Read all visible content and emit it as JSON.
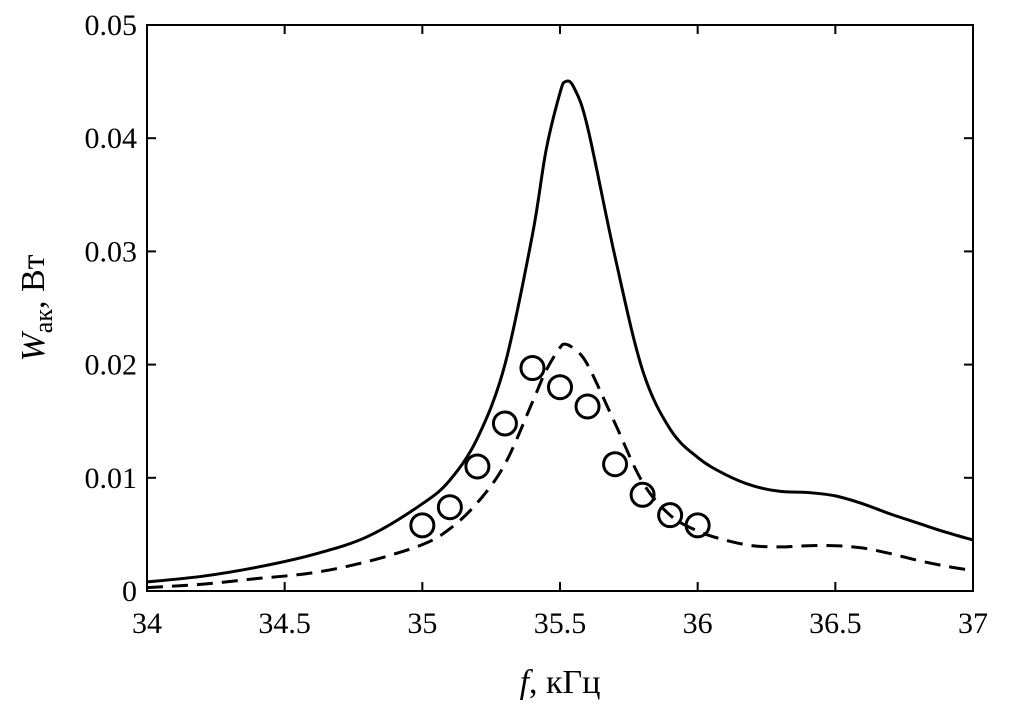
{
  "chart_data": {
    "type": "line",
    "xlabel": {
      "var": "f",
      "unit": ", кГц"
    },
    "ylabel": {
      "var": "W",
      "sub": "ак",
      "unit": ", Вт"
    },
    "xlim": [
      34,
      37
    ],
    "ylim": [
      0,
      0.05
    ],
    "x_ticks": [
      34,
      34.5,
      35,
      35.5,
      36,
      36.5,
      37
    ],
    "x_tick_labels": [
      "34",
      "34.5",
      "35",
      "35.5",
      "36",
      "36.5",
      "37"
    ],
    "y_ticks": [
      0,
      0.01,
      0.02,
      0.03,
      0.04,
      0.05
    ],
    "y_tick_labels": [
      "0",
      "0.01",
      "0.02",
      "0.03",
      "0.04",
      "0.05"
    ],
    "grid": false,
    "series": [
      {
        "style": "solid",
        "color": "#000000",
        "points": [
          [
            34.0,
            0.0008
          ],
          [
            34.2,
            0.0013
          ],
          [
            34.4,
            0.0021
          ],
          [
            34.6,
            0.0032
          ],
          [
            34.8,
            0.0048
          ],
          [
            35.0,
            0.0077
          ],
          [
            35.1,
            0.0098
          ],
          [
            35.2,
            0.0135
          ],
          [
            35.3,
            0.02
          ],
          [
            35.4,
            0.0315
          ],
          [
            35.45,
            0.039
          ],
          [
            35.5,
            0.044
          ],
          [
            35.52,
            0.045
          ],
          [
            35.55,
            0.0445
          ],
          [
            35.6,
            0.041
          ],
          [
            35.7,
            0.0295
          ],
          [
            35.8,
            0.0195
          ],
          [
            35.9,
            0.0143
          ],
          [
            36.0,
            0.0118
          ],
          [
            36.1,
            0.0103
          ],
          [
            36.2,
            0.0093
          ],
          [
            36.3,
            0.0088
          ],
          [
            36.4,
            0.0087
          ],
          [
            36.5,
            0.0084
          ],
          [
            36.6,
            0.0077
          ],
          [
            36.7,
            0.0068
          ],
          [
            36.8,
            0.006
          ],
          [
            36.9,
            0.0052
          ],
          [
            37.0,
            0.0045
          ]
        ]
      },
      {
        "style": "dashed",
        "color": "#000000",
        "points": [
          [
            34.0,
            0.0003
          ],
          [
            34.2,
            0.0006
          ],
          [
            34.4,
            0.0011
          ],
          [
            34.6,
            0.0016
          ],
          [
            34.8,
            0.0026
          ],
          [
            35.0,
            0.0041
          ],
          [
            35.1,
            0.0055
          ],
          [
            35.2,
            0.0078
          ],
          [
            35.3,
            0.0112
          ],
          [
            35.4,
            0.0167
          ],
          [
            35.45,
            0.0195
          ],
          [
            35.5,
            0.0215
          ],
          [
            35.52,
            0.0218
          ],
          [
            35.55,
            0.0214
          ],
          [
            35.6,
            0.02
          ],
          [
            35.7,
            0.0148
          ],
          [
            35.8,
            0.0096
          ],
          [
            35.9,
            0.0067
          ],
          [
            36.0,
            0.0053
          ],
          [
            36.1,
            0.0045
          ],
          [
            36.2,
            0.004
          ],
          [
            36.3,
            0.0039
          ],
          [
            36.4,
            0.004
          ],
          [
            36.5,
            0.004
          ],
          [
            36.6,
            0.0038
          ],
          [
            36.7,
            0.0033
          ],
          [
            36.8,
            0.0027
          ],
          [
            36.9,
            0.0022
          ],
          [
            37.0,
            0.0018
          ]
        ]
      },
      {
        "style": "markers",
        "marker": "circle",
        "color": "#000000",
        "points": [
          [
            35.0,
            0.0058
          ],
          [
            35.1,
            0.0074
          ],
          [
            35.2,
            0.011
          ],
          [
            35.3,
            0.0148
          ],
          [
            35.4,
            0.0197
          ],
          [
            35.5,
            0.018
          ],
          [
            35.6,
            0.0163
          ],
          [
            35.7,
            0.0112
          ],
          [
            35.8,
            0.0085
          ],
          [
            35.9,
            0.0067
          ],
          [
            36.0,
            0.0058
          ]
        ]
      }
    ]
  }
}
